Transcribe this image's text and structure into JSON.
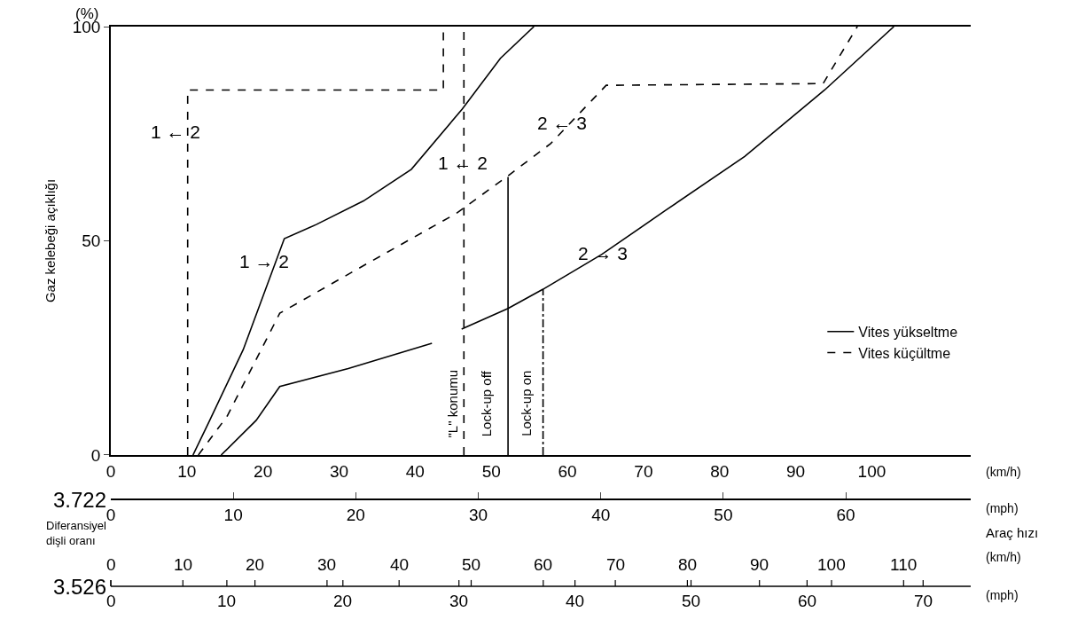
{
  "chart_data": {
    "type": "line",
    "ylabel": "Gaz kelebeği açıklığı",
    "xlabel": "(km/h)",
    "xlim": [
      0,
      113
    ],
    "xticks": [
      0,
      10,
      20,
      30,
      40,
      50,
      60,
      70,
      80,
      90,
      100
    ],
    "ylim": [
      0,
      100
    ],
    "yticks": [
      0,
      50,
      100
    ],
    "x2label": "(mph)",
    "x2lim": [
      0,
      70.2
    ],
    "x2ticks": [
      0,
      10,
      20,
      30,
      40,
      50,
      60
    ],
    "legend": "right",
    "marker": "none",
    "series": [
      {
        "name": "Vites yükseltme",
        "type": "line",
        "line_style": "solid",
        "color": "#000000",
        "x": [
          10.8,
          13.0,
          17.4,
          22.8,
          27.0,
          33.2,
          39.5,
          46.2,
          51.2,
          55.6
        ],
        "values": [
          0,
          8.1,
          24.6,
          50.5,
          53.8,
          59.3,
          66.7,
          80.8,
          92.6,
          100
        ]
      },
      {
        "name": "Vites küçültme",
        "type": "line",
        "line_style": "dashed",
        "color": "#000000",
        "x": [
          11.5,
          15.3,
          22.2,
          33.2,
          45.4,
          52.0,
          57.8,
          65.1,
          93.6,
          98.1
        ],
        "values": [
          0,
          9.1,
          33.1,
          44.2,
          56.4,
          64.9,
          72.7,
          86.3,
          86.7,
          100
        ]
      },
      {
        "type": "line",
        "line_style": "solid",
        "color": "#000000",
        "x": [
          14.5,
          19.1,
          22.2,
          31.2,
          42.2
        ],
        "values": [
          0,
          8.1,
          16.0,
          20.2,
          26.1
        ]
      },
      {
        "type": "line",
        "line_style": "solid",
        "color": "#000000",
        "x": [
          46.1,
          52.2,
          56.8,
          64.5,
          72.9,
          83.3,
          93.8,
          102.9
        ],
        "values": [
          29.4,
          34.2,
          38.7,
          46.8,
          57.1,
          69.7,
          85.2,
          100
        ]
      },
      {
        "type": "line",
        "line_style": "dashed",
        "color": "#000000",
        "x": [
          10.1,
          10.1,
          43.7,
          43.7
        ],
        "values": [
          0,
          85.2,
          85.2,
          100
        ]
      },
      {
        "type": "line",
        "line_style": "dashed",
        "color": "#000000",
        "x": [
          46.4,
          46.4
        ],
        "values": [
          0,
          100
        ]
      },
      {
        "type": "line",
        "line_style": "solid",
        "color": "#000000",
        "x": [
          52.2,
          52.2
        ],
        "values": [
          0,
          64.9
        ]
      },
      {
        "type": "line",
        "line_style": "dashdot",
        "color": "#000000",
        "x": [
          56.8,
          56.8
        ],
        "values": [
          0,
          38.7
        ]
      }
    ],
    "annotations": [
      "1 ← 2",
      "1 → 2",
      {
        "text": "1 ← 2",
        "x": 46.2,
        "y": 68.3
      },
      "2 ← 3",
      {
        "text": "2 → 3",
        "x": 64.7,
        "y": 47.2
      },
      "\"L\" konumu",
      "Lock-up off",
      "Lock-up on",
      "(%)",
      "3.722",
      "Diferansiyel dişli oranı",
      "Araç hızı",
      "(km/h)",
      "(mph)",
      "3.526",
      "0",
      "10",
      "20",
      "30",
      "40",
      "50",
      "60",
      "70",
      "80",
      "90",
      "100",
      "110",
      "0",
      "10",
      "20",
      "30",
      "40",
      "50",
      "60",
      "70"
    ]
  }
}
